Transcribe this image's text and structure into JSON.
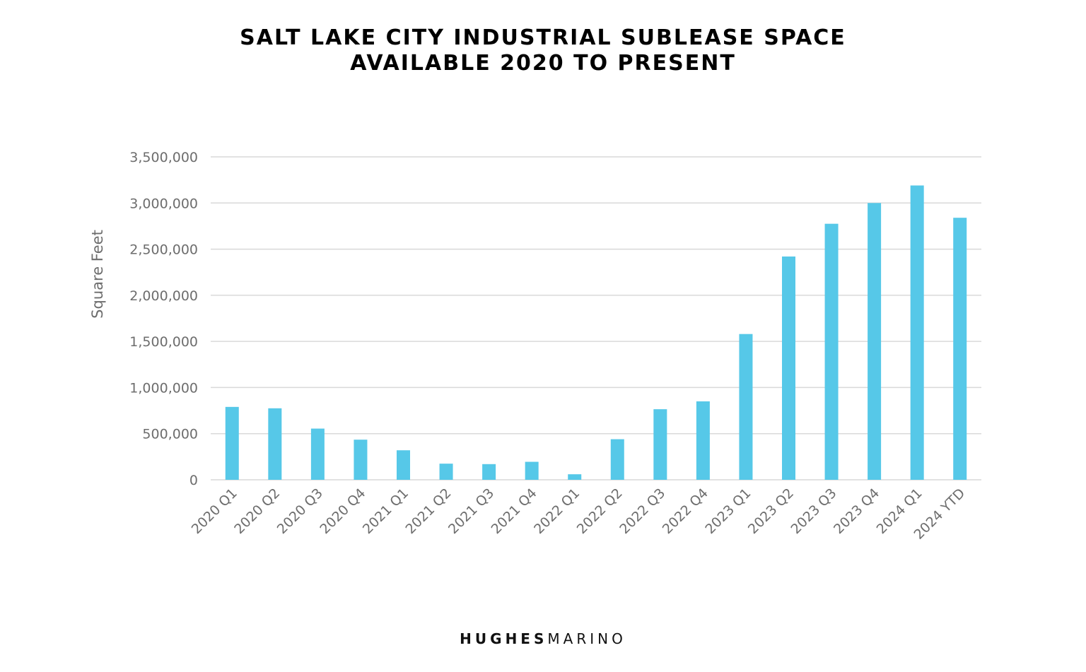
{
  "chart_data": {
    "type": "bar",
    "title_line1": "SALT LAKE CITY INDUSTRIAL SUBLEASE SPACE",
    "title_line2": "AVAILABLE 2020 TO PRESENT",
    "ylabel": "Square Feet",
    "xlabel": "",
    "ylim": [
      0,
      3500000
    ],
    "yticks": [
      0,
      500000,
      1000000,
      1500000,
      2000000,
      2500000,
      3000000,
      3500000
    ],
    "ytick_labels": [
      "0",
      "500,000",
      "1,000,000",
      "1,500,000",
      "2,000,000",
      "2,500,000",
      "3,000,000",
      "3,500,000"
    ],
    "categories": [
      "2020 Q1",
      "2020 Q2",
      "2020 Q3",
      "2020 Q4",
      "2021 Q1",
      "2021 Q2",
      "2021 Q3",
      "2021 Q4",
      "2022 Q1",
      "2022 Q2",
      "2022 Q3",
      "2022 Q4",
      "2023 Q1",
      "2023 Q2",
      "2023 Q3",
      "2023 Q4",
      "2024 Q1",
      "2024 YTD"
    ],
    "values": [
      790000,
      775000,
      555000,
      435000,
      320000,
      175000,
      170000,
      195000,
      60000,
      440000,
      765000,
      850000,
      1580000,
      2420000,
      2775000,
      3000000,
      3190000,
      2840000
    ],
    "bar_color": "#56c8e8",
    "grid": true,
    "legend": "none"
  },
  "logo": {
    "bold": "HUGHES",
    "light": "MARINO"
  }
}
